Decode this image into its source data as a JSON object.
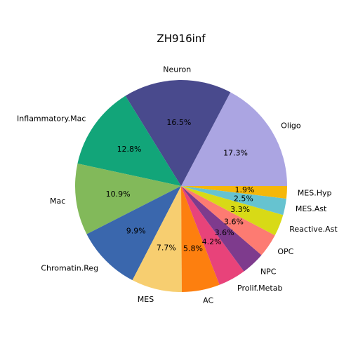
{
  "chart_data": {
    "type": "pie",
    "title": "ZH916inf",
    "start_angle_deg": 0,
    "direction": "counterclockwise",
    "slices": [
      {
        "label": "Oligo",
        "value": 17.3,
        "pct_label": "17.3%",
        "color": "#aba5e2"
      },
      {
        "label": "Neuron",
        "value": 16.5,
        "pct_label": "16.5%",
        "color": "#494a8d"
      },
      {
        "label": "Inflammatory.Mac",
        "value": 12.8,
        "pct_label": "12.8%",
        "color": "#12a579"
      },
      {
        "label": "Mac",
        "value": 10.9,
        "pct_label": "10.9%",
        "color": "#82b95a"
      },
      {
        "label": "Chromatin.Reg",
        "value": 9.9,
        "pct_label": "9.9%",
        "color": "#3a67ad"
      },
      {
        "label": "MES",
        "value": 7.7,
        "pct_label": "7.7%",
        "color": "#f7ce70"
      },
      {
        "label": "AC",
        "value": 5.8,
        "pct_label": "5.8%",
        "color": "#fd7f0f"
      },
      {
        "label": "Prolif.Metab",
        "value": 4.2,
        "pct_label": "4.2%",
        "color": "#e8437a"
      },
      {
        "label": "NPC",
        "value": 3.6,
        "pct_label": "3.6%",
        "color": "#7e3b8d"
      },
      {
        "label": "OPC",
        "value": 3.6,
        "pct_label": "3.6%",
        "color": "#fd7b72"
      },
      {
        "label": "Reactive.Ast",
        "value": 3.3,
        "pct_label": "3.3%",
        "color": "#d8da16"
      },
      {
        "label": "MES.Ast",
        "value": 2.5,
        "pct_label": "2.5%",
        "color": "#66c3d0"
      },
      {
        "label": "MES.Hyp",
        "value": 1.9,
        "pct_label": "1.9%",
        "color": "#f5b70a"
      }
    ]
  }
}
